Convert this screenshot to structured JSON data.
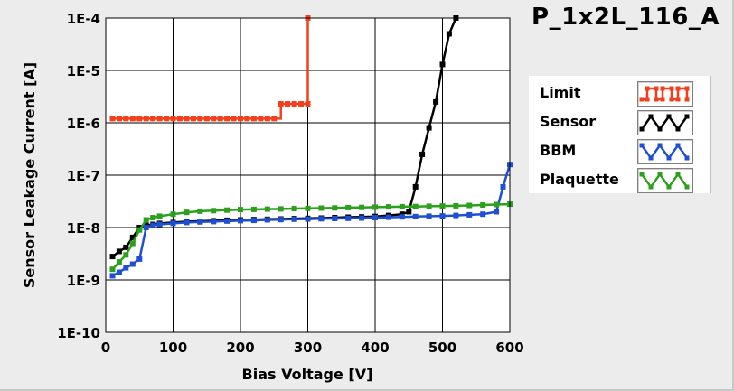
{
  "title": "P_1x2L_116_A",
  "chart_data": {
    "type": "line",
    "ylog": true,
    "xlabel": "Bias Voltage [V]",
    "ylabel": "Sensor Leakage Current [A]",
    "xlim": [
      0,
      600
    ],
    "ylim": [
      1e-10,
      0.0001
    ],
    "xticks": [
      0,
      100,
      200,
      300,
      400,
      500,
      600
    ],
    "yticks": [
      1e-10,
      1e-09,
      1e-08,
      1e-07,
      1e-06,
      1e-05,
      0.0001
    ],
    "xtick_labels": [
      "0",
      "100",
      "200",
      "300",
      "400",
      "500",
      "600"
    ],
    "ytick_labels": [
      "1E-10",
      "1E-9",
      "1E-8",
      "1E-7",
      "1E-6",
      "1E-5",
      "1E-4"
    ],
    "grid": true,
    "legend_position": "right",
    "series": [
      {
        "name": "Limit",
        "color": "#f0401e",
        "step": true,
        "x": [
          10,
          20,
          30,
          40,
          50,
          60,
          70,
          80,
          90,
          100,
          110,
          120,
          130,
          140,
          150,
          160,
          170,
          180,
          190,
          200,
          210,
          220,
          230,
          240,
          250,
          260,
          270,
          280,
          290,
          300,
          300
        ],
        "y": [
          1.2e-06,
          1.2e-06,
          1.2e-06,
          1.2e-06,
          1.2e-06,
          1.2e-06,
          1.2e-06,
          1.2e-06,
          1.2e-06,
          1.2e-06,
          1.2e-06,
          1.2e-06,
          1.2e-06,
          1.2e-06,
          1.2e-06,
          1.2e-06,
          1.2e-06,
          1.2e-06,
          1.2e-06,
          1.2e-06,
          1.2e-06,
          1.2e-06,
          1.2e-06,
          1.2e-06,
          1.2e-06,
          2.3e-06,
          2.3e-06,
          2.3e-06,
          2.3e-06,
          2.3e-06,
          0.0001
        ]
      },
      {
        "name": "Sensor",
        "color": "#000000",
        "step": false,
        "x": [
          10,
          20,
          30,
          40,
          50,
          60,
          70,
          80,
          100,
          120,
          140,
          160,
          180,
          200,
          220,
          240,
          260,
          280,
          300,
          320,
          340,
          360,
          380,
          400,
          420,
          440,
          450,
          460,
          470,
          480,
          490,
          500,
          510,
          520
        ],
        "y": [
          2.8e-09,
          3.5e-09,
          4.2e-09,
          6.5e-09,
          1e-08,
          1.1e-08,
          1.15e-08,
          1.2e-08,
          1.25e-08,
          1.3e-08,
          1.32e-08,
          1.35e-08,
          1.38e-08,
          1.4e-08,
          1.42e-08,
          1.44e-08,
          1.46e-08,
          1.48e-08,
          1.5e-08,
          1.52e-08,
          1.55e-08,
          1.58e-08,
          1.6e-08,
          1.63e-08,
          1.7e-08,
          1.8e-08,
          2e-08,
          6e-08,
          2.5e-07,
          8e-07,
          2.5e-06,
          1.3e-05,
          5e-05,
          0.0001
        ]
      },
      {
        "name": "BBM",
        "color": "#1e4fd2",
        "step": false,
        "x": [
          10,
          20,
          30,
          40,
          50,
          60,
          70,
          80,
          100,
          120,
          140,
          160,
          180,
          200,
          220,
          240,
          260,
          280,
          300,
          320,
          340,
          360,
          380,
          400,
          420,
          440,
          460,
          480,
          500,
          520,
          540,
          560,
          580,
          590,
          600
        ],
        "y": [
          1.2e-09,
          1.4e-09,
          1.7e-09,
          2e-09,
          2.5e-09,
          1e-08,
          1.1e-08,
          1.15e-08,
          1.2e-08,
          1.25e-08,
          1.28e-08,
          1.3e-08,
          1.33e-08,
          1.35e-08,
          1.37e-08,
          1.4e-08,
          1.42e-08,
          1.44e-08,
          1.45e-08,
          1.47e-08,
          1.49e-08,
          1.5e-08,
          1.52e-08,
          1.55e-08,
          1.57e-08,
          1.6e-08,
          1.62e-08,
          1.65e-08,
          1.67e-08,
          1.7e-08,
          1.75e-08,
          1.8e-08,
          2e-08,
          6e-08,
          1.6e-07
        ]
      },
      {
        "name": "Plaquette",
        "color": "#2ca01c",
        "step": false,
        "x": [
          10,
          20,
          30,
          40,
          50,
          60,
          70,
          80,
          100,
          120,
          140,
          160,
          180,
          200,
          220,
          240,
          260,
          280,
          300,
          320,
          340,
          360,
          380,
          400,
          420,
          440,
          460,
          480,
          500,
          520,
          540,
          560,
          580,
          600
        ],
        "y": [
          1.6e-09,
          2.2e-09,
          3e-09,
          5e-09,
          9e-09,
          1.4e-08,
          1.55e-08,
          1.65e-08,
          1.8e-08,
          1.95e-08,
          2.05e-08,
          2.1e-08,
          2.15e-08,
          2.2e-08,
          2.22e-08,
          2.25e-08,
          2.27e-08,
          2.3e-08,
          2.32e-08,
          2.35e-08,
          2.37e-08,
          2.4e-08,
          2.42e-08,
          2.45e-08,
          2.48e-08,
          2.5e-08,
          2.52e-08,
          2.55e-08,
          2.58e-08,
          2.6e-08,
          2.65e-08,
          2.7e-08,
          2.75e-08,
          2.8e-08
        ]
      }
    ]
  }
}
